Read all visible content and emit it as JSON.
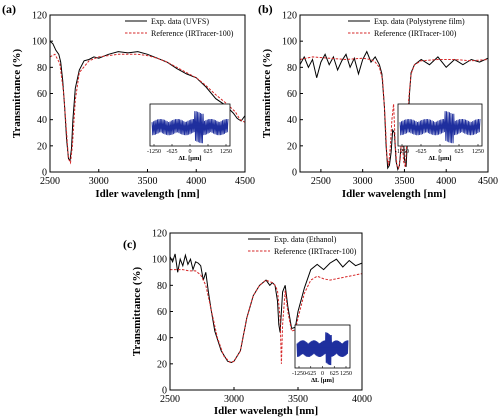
{
  "chart_data": [
    {
      "id": "a",
      "type": "line",
      "panel_label": "(a)",
      "xlabel": "Idler wavelength [nm]",
      "ylabel": "Transmittance (%)",
      "xlim": [
        2500,
        4500
      ],
      "ylim": [
        0,
        120
      ],
      "xticks": [
        2500,
        3000,
        3500,
        4000,
        4500
      ],
      "yticks": [
        0,
        20,
        40,
        60,
        80,
        100,
        120
      ],
      "legend_position": "top-right",
      "series": [
        {
          "name": "Exp. data (UVFS)",
          "color": "#000000",
          "dash": "solid",
          "x": [
            2500,
            2530,
            2560,
            2590,
            2610,
            2630,
            2650,
            2670,
            2690,
            2705,
            2720,
            2735,
            2760,
            2800,
            2850,
            2900,
            2950,
            3000,
            3100,
            3200,
            3300,
            3400,
            3500,
            3600,
            3700,
            3800,
            3900,
            4000,
            4100,
            4200,
            4300,
            4380,
            4420,
            4460,
            4500
          ],
          "y": [
            100,
            98,
            93,
            90,
            84,
            70,
            50,
            25,
            10,
            9,
            18,
            40,
            64,
            78,
            85,
            86,
            88,
            87,
            90,
            92,
            91,
            92,
            90,
            87,
            84,
            79,
            75,
            72,
            65,
            56,
            51,
            45,
            41,
            39,
            43
          ]
        },
        {
          "name": "Reference (IRTracer-100)",
          "color": "#d62728",
          "dash": "dashed",
          "x": [
            2500,
            2550,
            2600,
            2640,
            2670,
            2690,
            2710,
            2730,
            2760,
            2800,
            2900,
            3000,
            3100,
            3200,
            3300,
            3400,
            3500,
            3600,
            3700,
            3800,
            3900,
            4000,
            4100,
            4200,
            4300,
            4400,
            4450,
            4500
          ],
          "y": [
            88,
            90,
            83,
            60,
            30,
            10,
            7,
            20,
            55,
            76,
            85,
            88,
            89,
            90,
            90,
            90,
            89,
            87,
            84,
            80,
            76,
            72,
            66,
            59,
            53,
            46,
            40,
            38
          ]
        }
      ],
      "inset": {
        "xlabel": "ΔL [μm]",
        "xticks": [
          -1250,
          -625,
          0,
          625,
          1250
        ]
      }
    },
    {
      "id": "b",
      "type": "line",
      "panel_label": "(b)",
      "xlabel": "Idler wavelength [nm]",
      "ylabel": "Transmittance (%)",
      "xlim": [
        2250,
        4500
      ],
      "ylim": [
        0,
        120
      ],
      "xticks": [
        2500,
        3000,
        3500,
        4000,
        4500
      ],
      "yticks": [
        0,
        20,
        40,
        60,
        80,
        100,
        120
      ],
      "legend_position": "top-right",
      "series": [
        {
          "name": "Exp. data (Polystyrene film)",
          "color": "#000000",
          "dash": "solid",
          "x": [
            2250,
            2300,
            2350,
            2400,
            2450,
            2500,
            2550,
            2600,
            2650,
            2700,
            2750,
            2800,
            2850,
            2900,
            2950,
            3000,
            3050,
            3100,
            3150,
            3200,
            3230,
            3260,
            3280,
            3300,
            3320,
            3340,
            3360,
            3380,
            3400,
            3420,
            3440,
            3460,
            3480,
            3500,
            3520,
            3540,
            3560,
            3580,
            3620,
            3700,
            3800,
            3900,
            4000,
            4100,
            4200,
            4300,
            4400,
            4500
          ],
          "y": [
            82,
            88,
            80,
            86,
            72,
            84,
            90,
            82,
            88,
            78,
            85,
            90,
            80,
            87,
            75,
            86,
            92,
            84,
            88,
            82,
            75,
            50,
            20,
            3,
            5,
            15,
            32,
            30,
            8,
            2,
            5,
            20,
            38,
            10,
            4,
            30,
            60,
            76,
            82,
            86,
            82,
            88,
            80,
            86,
            82,
            86,
            84,
            87
          ]
        },
        {
          "name": "Reference (IRTracer-100)",
          "color": "#d62728",
          "dash": "dashed",
          "x": [
            2250,
            2400,
            2600,
            2800,
            3000,
            3100,
            3150,
            3200,
            3240,
            3270,
            3290,
            3310,
            3330,
            3350,
            3370,
            3390,
            3410,
            3430,
            3450,
            3470,
            3490,
            3510,
            3530,
            3550,
            3580,
            3620,
            3700,
            3900,
            4100,
            4300,
            4500
          ],
          "y": [
            86,
            88,
            87,
            86,
            87,
            86,
            84,
            80,
            70,
            40,
            12,
            5,
            18,
            40,
            52,
            20,
            5,
            3,
            10,
            30,
            8,
            4,
            25,
            55,
            75,
            82,
            85,
            86,
            86,
            85,
            86
          ]
        }
      ],
      "inset": {
        "xlabel": "ΔL [μm]",
        "xticks": [
          -1250,
          -625,
          0,
          625,
          1250
        ]
      }
    },
    {
      "id": "c",
      "type": "line",
      "panel_label": "(c)",
      "xlabel": "Idler wavelength [nm]",
      "ylabel": "Transmittance (%)",
      "xlim": [
        2500,
        4000
      ],
      "ylim": [
        0,
        120
      ],
      "xticks": [
        2500,
        3000,
        3500,
        4000
      ],
      "yticks": [
        0,
        20,
        40,
        60,
        80,
        100,
        120
      ],
      "legend_position": "top-right",
      "series": [
        {
          "name": "Exp. data (Ethanol)",
          "color": "#000000",
          "dash": "solid",
          "x": [
            2500,
            2520,
            2540,
            2560,
            2580,
            2600,
            2620,
            2640,
            2660,
            2680,
            2700,
            2720,
            2740,
            2760,
            2780,
            2800,
            2820,
            2850,
            2900,
            2950,
            2980,
            3000,
            3050,
            3100,
            3150,
            3200,
            3250,
            3280,
            3300,
            3320,
            3340,
            3350,
            3360,
            3370,
            3380,
            3400,
            3420,
            3450,
            3480,
            3500,
            3550,
            3600,
            3650,
            3700,
            3750,
            3800,
            3850,
            3900,
            3950,
            4000
          ],
          "y": [
            102,
            98,
            104,
            90,
            100,
            95,
            103,
            96,
            100,
            92,
            98,
            97,
            95,
            84,
            90,
            75,
            62,
            45,
            30,
            22,
            21,
            22,
            30,
            55,
            72,
            80,
            84,
            80,
            82,
            80,
            68,
            50,
            44,
            60,
            75,
            80,
            64,
            47,
            48,
            60,
            78,
            92,
            96,
            92,
            97,
            100,
            94,
            99,
            95,
            97
          ]
        },
        {
          "name": "Reference (IRTracer-100)",
          "color": "#d62728",
          "dash": "dashed",
          "x": [
            2500,
            2550,
            2600,
            2650,
            2700,
            2740,
            2780,
            2820,
            2870,
            2920,
            2970,
            3000,
            3050,
            3100,
            3150,
            3200,
            3250,
            3300,
            3320,
            3340,
            3360,
            3370,
            3380,
            3400,
            3420,
            3450,
            3480,
            3500,
            3550,
            3600,
            3650,
            3700,
            3750,
            3800,
            3850,
            3900,
            3950,
            4000
          ],
          "y": [
            92,
            92,
            92,
            91,
            91,
            88,
            80,
            62,
            40,
            26,
            21,
            22,
            30,
            55,
            72,
            80,
            84,
            82,
            80,
            76,
            55,
            20,
            50,
            76,
            60,
            45,
            46,
            55,
            74,
            84,
            87,
            85,
            84,
            85,
            86,
            87,
            88,
            89
          ]
        }
      ],
      "inset": {
        "xlabel": "ΔL [μm]",
        "xticks": [
          -1250,
          -625,
          0,
          625,
          1250
        ]
      }
    }
  ]
}
